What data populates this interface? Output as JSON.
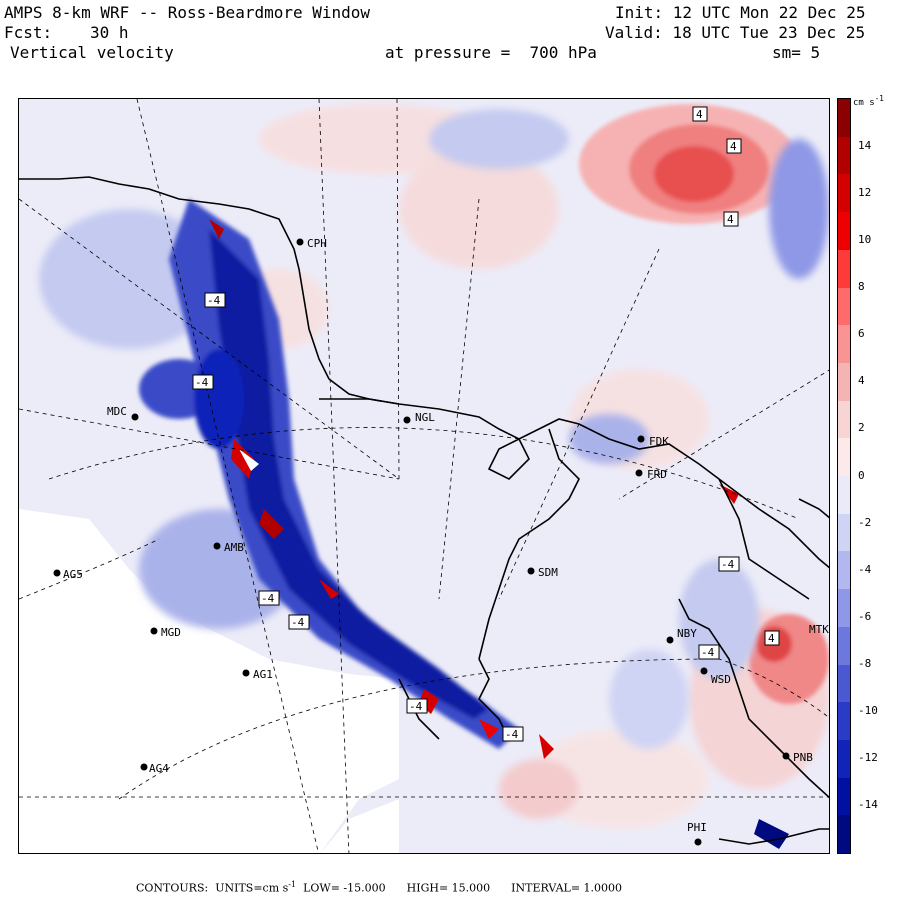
{
  "header": {
    "model": "AMPS 8-km WRF -- Ross-Beardmore Window",
    "fcst_label": "Fcst:",
    "fcst_value": "30 h",
    "field": "Vertical velocity",
    "init": "Init: 12 UTC Mon 22 Dec 25",
    "valid": "Valid: 18 UTC Tue 23 Dec 25",
    "pressure": "at pressure =  700 hPa",
    "smoothing": "sm= 5"
  },
  "colorbar": {
    "unit": "cm s",
    "unit_exp": "-1",
    "labels": [
      "14",
      "12",
      "10",
      "8",
      "6",
      "4",
      "2",
      "0",
      "-2",
      "-4",
      "-6",
      "-8",
      "-10",
      "-12",
      "-14"
    ],
    "colors": [
      "#8b0000",
      "#b00000",
      "#d40000",
      "#ee0000",
      "#ff3a3a",
      "#ff6a6a",
      "#f89494",
      "#f4b4b4",
      "#f8d4d4",
      "#fceaea",
      "#eaeaf8",
      "#d0d4f4",
      "#b2b8ee",
      "#8e98e6",
      "#6c78dc",
      "#4a58d2",
      "#2a3cc6",
      "#1024b8",
      "#0010a0",
      "#000a80"
    ]
  },
  "stations": [
    {
      "id": "CPH"
    },
    {
      "id": "NGL"
    },
    {
      "id": "MDC"
    },
    {
      "id": "FDK"
    },
    {
      "id": "FRD"
    },
    {
      "id": "AG5"
    },
    {
      "id": "MGD"
    },
    {
      "id": "AG1"
    },
    {
      "id": "SDM"
    },
    {
      "id": "NBY"
    },
    {
      "id": "WSD"
    },
    {
      "id": "AG4"
    },
    {
      "id": "PNB"
    },
    {
      "id": "PHI"
    },
    {
      "id": "MTK"
    },
    {
      "id": "AMB"
    }
  ],
  "contour_labels": [
    "4",
    "4",
    "4",
    "-4",
    "-4",
    "-4",
    "-4",
    "-4",
    "-4",
    "4",
    "-4",
    "-4"
  ],
  "footer": {
    "contours": "CONTOURS:",
    "units_label": "UNITS=cm s",
    "units_exp": "-1",
    "low": "LOW= -15.000",
    "high": "HIGH= 15.000",
    "interval": "INTERVAL= 1.0000"
  }
}
